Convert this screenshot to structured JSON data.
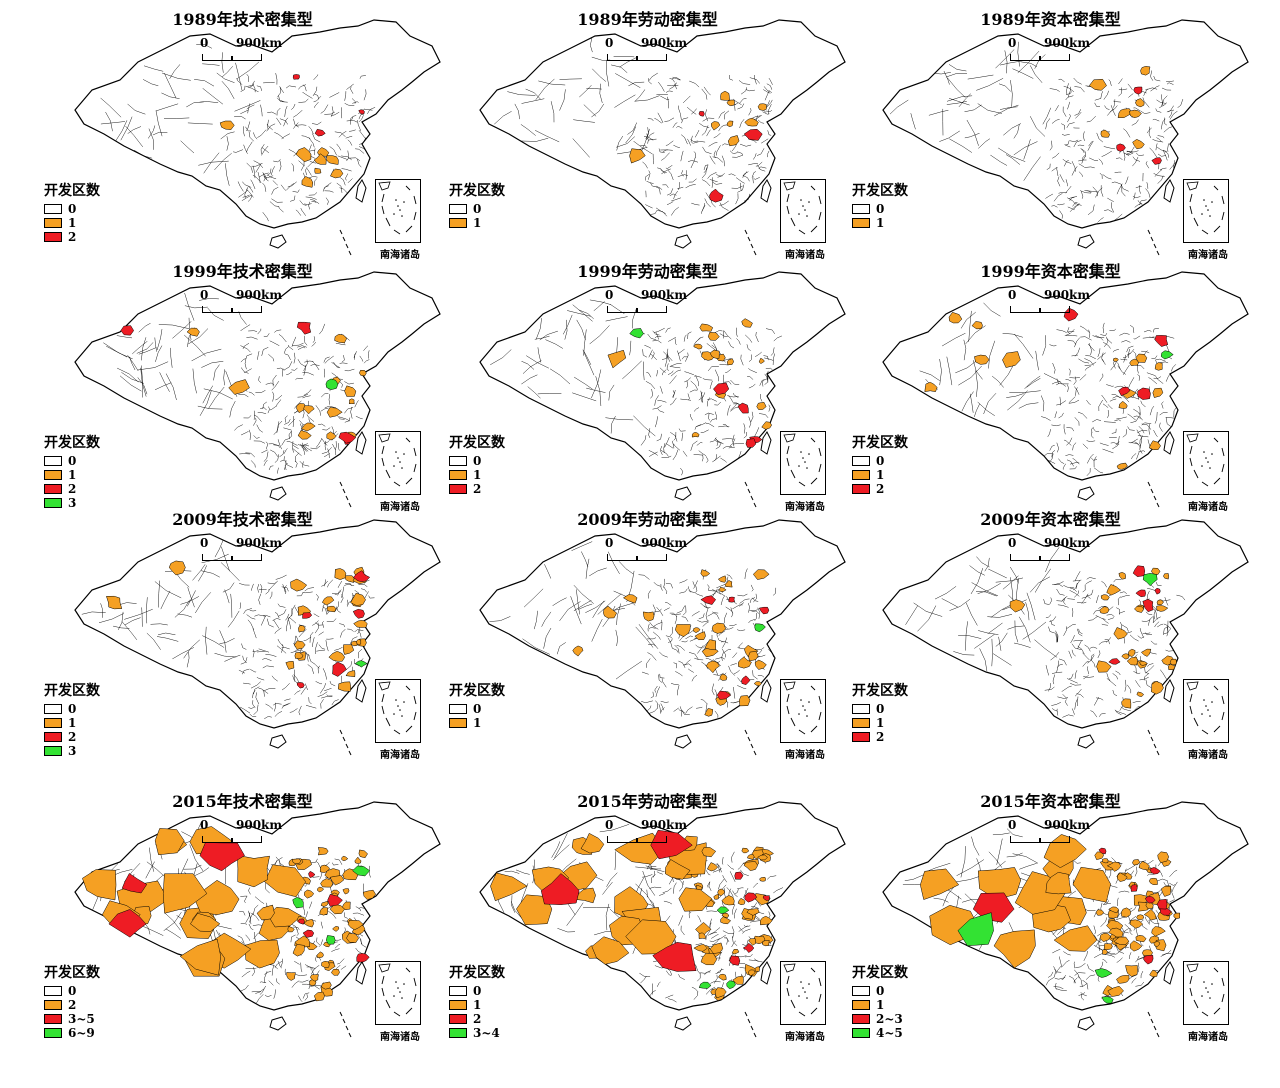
{
  "colors": {
    "c0": "#ffffff",
    "orange": "#f5a023",
    "red": "#ee1c24",
    "green": "#33e233",
    "outline": "#000000"
  },
  "legend_title": "开发区数",
  "scale": {
    "zero": "0",
    "dist": "900km"
  },
  "inset_label": "南海诸岛",
  "panels": [
    {
      "title": "1989年技术密集型",
      "legend": [
        {
          "label": "0",
          "color": "#ffffff"
        },
        {
          "label": "1",
          "color": "#f5a023"
        },
        {
          "label": "2",
          "color": "#ee1c24"
        }
      ],
      "density": "low"
    },
    {
      "title": "1989年劳动密集型",
      "legend": [
        {
          "label": "0",
          "color": "#ffffff"
        },
        {
          "label": "1",
          "color": "#f5a023"
        }
      ],
      "density": "low"
    },
    {
      "title": "1989年资本密集型",
      "legend": [
        {
          "label": "0",
          "color": "#ffffff"
        },
        {
          "label": "1",
          "color": "#f5a023"
        }
      ],
      "density": "low"
    },
    {
      "title": "1999年技术密集型",
      "legend": [
        {
          "label": "0",
          "color": "#ffffff"
        },
        {
          "label": "1",
          "color": "#f5a023"
        },
        {
          "label": "2",
          "color": "#ee1c24"
        },
        {
          "label": "3",
          "color": "#33e233"
        }
      ],
      "density": "low-mid"
    },
    {
      "title": "1999年劳动密集型",
      "legend": [
        {
          "label": "0",
          "color": "#ffffff"
        },
        {
          "label": "1",
          "color": "#f5a023"
        },
        {
          "label": "2",
          "color": "#ee1c24"
        }
      ],
      "density": "low-mid"
    },
    {
      "title": "1999年资本密集型",
      "legend": [
        {
          "label": "0",
          "color": "#ffffff"
        },
        {
          "label": "1",
          "color": "#f5a023"
        },
        {
          "label": "2",
          "color": "#ee1c24"
        }
      ],
      "density": "low-mid"
    },
    {
      "title": "2009年技术密集型",
      "legend": [
        {
          "label": "0",
          "color": "#ffffff"
        },
        {
          "label": "1",
          "color": "#f5a023"
        },
        {
          "label": "2",
          "color": "#ee1c24"
        },
        {
          "label": "3",
          "color": "#33e233"
        }
      ],
      "density": "mid"
    },
    {
      "title": "2009年劳动密集型",
      "legend": [
        {
          "label": "0",
          "color": "#ffffff"
        },
        {
          "label": "1",
          "color": "#f5a023"
        }
      ],
      "density": "mid"
    },
    {
      "title": "2009年资本密集型",
      "legend": [
        {
          "label": "0",
          "color": "#ffffff"
        },
        {
          "label": "1",
          "color": "#f5a023"
        },
        {
          "label": "2",
          "color": "#ee1c24"
        }
      ],
      "density": "mid"
    },
    {
      "title": "2015年技术密集型",
      "legend": [
        {
          "label": "0",
          "color": "#ffffff"
        },
        {
          "label": "2",
          "color": "#f5a023"
        },
        {
          "label": "3~5",
          "color": "#ee1c24"
        },
        {
          "label": "6~9",
          "color": "#33e233"
        }
      ],
      "density": "high"
    },
    {
      "title": "2015年劳动密集型",
      "legend": [
        {
          "label": "0",
          "color": "#ffffff"
        },
        {
          "label": "1",
          "color": "#f5a023"
        },
        {
          "label": "2",
          "color": "#ee1c24"
        },
        {
          "label": "3~4",
          "color": "#33e233"
        }
      ],
      "density": "high"
    },
    {
      "title": "2015年资本密集型",
      "legend": [
        {
          "label": "0",
          "color": "#ffffff"
        },
        {
          "label": "1",
          "color": "#f5a023"
        },
        {
          "label": "2~3",
          "color": "#ee1c24"
        },
        {
          "label": "4~5",
          "color": "#33e233"
        }
      ],
      "density": "high"
    }
  ]
}
